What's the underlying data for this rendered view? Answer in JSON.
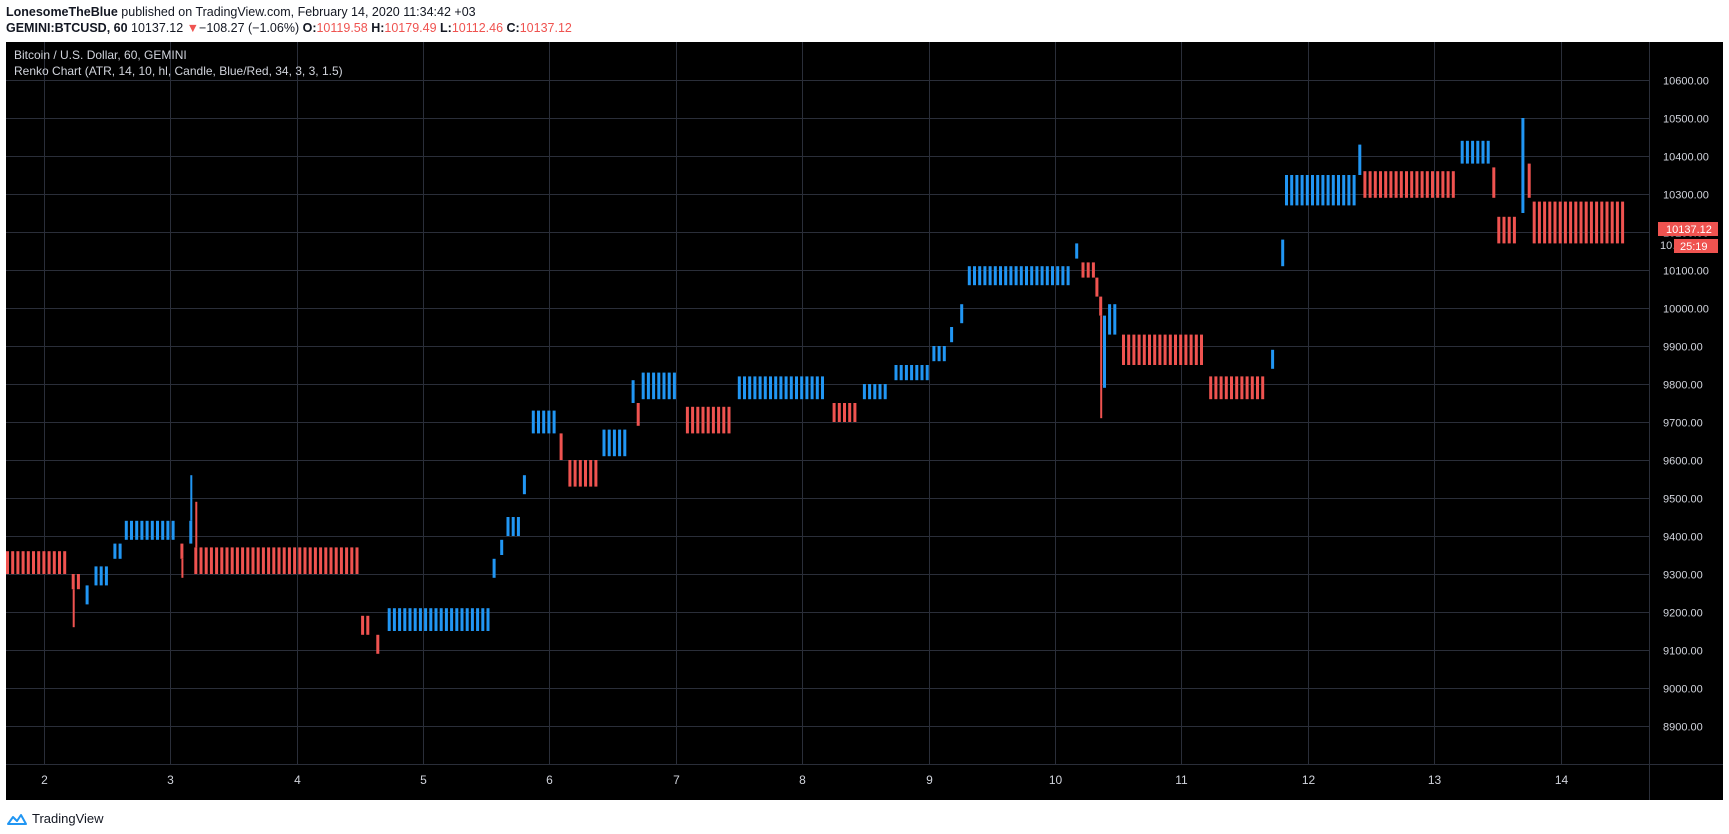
{
  "header": {
    "author": "LonesomeTheBlue",
    "published_text": " published on TradingView.com, February 14, 2020 11:34:42 +03",
    "symbol": "GEMINI:BTCUSD, 60",
    "last_price": "10137.12",
    "change_arrow": "▼",
    "change": "−108.27 (−1.06%)",
    "o_label": "O:",
    "o_value": "10119.58",
    "h_label": "H:",
    "h_value": "10179.49",
    "l_label": "L:",
    "l_value": "10112.46",
    "c_label": "C:",
    "c_value": "10137.12"
  },
  "legend": {
    "title": "Bitcoin / U.S. Dollar, 60, GEMINI",
    "indicator": "Renko Chart (ATR, 14, 10, hl, Candle, Blue/Red, 34, 3, 3, 1.5)"
  },
  "price_tags": {
    "last_price": "10137.12",
    "countdown": "25:19",
    "partial_label": "10…"
  },
  "footer": {
    "brand": "TradingView"
  },
  "colors": {
    "up": "#2196f3",
    "down": "#ef5350",
    "grid": "#2a2e39",
    "text": "#d1d4dc",
    "background": "#000000"
  },
  "chart_data": {
    "type": "renko",
    "x_axis": {
      "tick_labels": [
        "2",
        "3",
        "4",
        "5",
        "6",
        "7",
        "8",
        "9",
        "10",
        "11",
        "12",
        "13",
        "14"
      ],
      "xlim": [
        1.7,
        14.7
      ]
    },
    "y_axis": {
      "tick_labels": [
        "10600.00",
        "10500.00",
        "10400.00",
        "10300.00",
        "10200.00",
        "10100.00",
        "10000.00",
        "9900.00",
        "9800.00",
        "9700.00",
        "9600.00",
        "9500.00",
        "9400.00",
        "9300.00",
        "9200.00",
        "9100.00",
        "9000.00",
        "8900.00"
      ],
      "ylim": [
        8800,
        10700
      ],
      "position": "right"
    },
    "grid": true,
    "segments": [
      {
        "dir": "down",
        "x0": 1.7,
        "x1": 2.2,
        "low": 9300,
        "high": 9360
      },
      {
        "dir": "down",
        "x0": 2.22,
        "x1": 2.3,
        "low": 9260,
        "high": 9300,
        "wick_low": 9160
      },
      {
        "dir": "up",
        "x0": 2.33,
        "x1": 2.38,
        "low": 9220,
        "high": 9270
      },
      {
        "dir": "up",
        "x0": 2.4,
        "x1": 2.53,
        "low": 9270,
        "high": 9320
      },
      {
        "dir": "up",
        "x0": 2.55,
        "x1": 2.62,
        "low": 9340,
        "high": 9380
      },
      {
        "dir": "up",
        "x0": 2.64,
        "x1": 3.05,
        "low": 9390,
        "high": 9440
      },
      {
        "dir": "down",
        "x0": 3.08,
        "x1": 3.13,
        "low": 9340,
        "high": 9380,
        "wick_low": 9290
      },
      {
        "dir": "up",
        "x0": 3.15,
        "x1": 3.17,
        "low": 9380,
        "high": 9440,
        "wick_high": 9560
      },
      {
        "dir": "down",
        "x0": 3.19,
        "x1": 4.51,
        "low": 9300,
        "high": 9370,
        "wick_high": 9490
      },
      {
        "dir": "down",
        "x0": 4.51,
        "x1": 4.61,
        "low": 9140,
        "high": 9190
      },
      {
        "dir": "down",
        "x0": 4.63,
        "x1": 4.69,
        "low": 9090,
        "high": 9140
      },
      {
        "dir": "up",
        "x0": 4.72,
        "x1": 5.53,
        "low": 9150,
        "high": 9210
      },
      {
        "dir": "up",
        "x0": 5.55,
        "x1": 5.59,
        "low": 9290,
        "high": 9340
      },
      {
        "dir": "up",
        "x0": 5.61,
        "x1": 5.65,
        "low": 9350,
        "high": 9390
      },
      {
        "dir": "up",
        "x0": 5.66,
        "x1": 5.77,
        "low": 9400,
        "high": 9450
      },
      {
        "dir": "up",
        "x0": 5.79,
        "x1": 5.84,
        "low": 9510,
        "high": 9560
      },
      {
        "dir": "up",
        "x0": 5.86,
        "x1": 6.05,
        "low": 9670,
        "high": 9730
      },
      {
        "dir": "down",
        "x0": 6.08,
        "x1": 6.13,
        "low": 9600,
        "high": 9670
      },
      {
        "dir": "down",
        "x0": 6.15,
        "x1": 6.4,
        "low": 9530,
        "high": 9600
      },
      {
        "dir": "up",
        "x0": 6.42,
        "x1": 6.63,
        "low": 9610,
        "high": 9680
      },
      {
        "dir": "up",
        "x0": 6.65,
        "x1": 6.67,
        "low": 9750,
        "high": 9810
      },
      {
        "dir": "down",
        "x0": 6.69,
        "x1": 6.71,
        "low": 9690,
        "high": 9750
      },
      {
        "dir": "up",
        "x0": 6.73,
        "x1": 7.03,
        "low": 9760,
        "high": 9830
      },
      {
        "dir": "down",
        "x0": 7.08,
        "x1": 7.45,
        "low": 9670,
        "high": 9740
      },
      {
        "dir": "up",
        "x0": 7.49,
        "x1": 8.2,
        "low": 9760,
        "high": 9820
      },
      {
        "dir": "down",
        "x0": 8.24,
        "x1": 8.43,
        "low": 9700,
        "high": 9750
      },
      {
        "dir": "up",
        "x0": 8.48,
        "x1": 8.7,
        "low": 9760,
        "high": 9800
      },
      {
        "dir": "up",
        "x0": 8.73,
        "x1": 9.03,
        "low": 9810,
        "high": 9850
      },
      {
        "dir": "up",
        "x0": 9.03,
        "x1": 9.15,
        "low": 9860,
        "high": 9900
      },
      {
        "dir": "up",
        "x0": 9.17,
        "x1": 9.23,
        "low": 9910,
        "high": 9950
      },
      {
        "dir": "up",
        "x0": 9.25,
        "x1": 9.29,
        "low": 9960,
        "high": 10010
      },
      {
        "dir": "up",
        "x0": 9.31,
        "x1": 10.14,
        "low": 10060,
        "high": 10110
      },
      {
        "dir": "up",
        "x0": 10.16,
        "x1": 10.2,
        "low": 10130,
        "high": 10170
      },
      {
        "dir": "down",
        "x0": 10.21,
        "x1": 10.32,
        "low": 10080,
        "high": 10120
      },
      {
        "dir": "down",
        "x0": 10.32,
        "x1": 10.35,
        "low": 10030,
        "high": 10080
      },
      {
        "dir": "down",
        "x0": 10.35,
        "x1": 10.38,
        "low": 9980,
        "high": 10030,
        "wick_low": 9710
      },
      {
        "dir": "up",
        "x0": 10.38,
        "x1": 10.4,
        "low": 9790,
        "high": 9980
      },
      {
        "dir": "up",
        "x0": 10.42,
        "x1": 10.51,
        "low": 9930,
        "high": 10010
      },
      {
        "dir": "down",
        "x0": 10.53,
        "x1": 11.2,
        "low": 9850,
        "high": 9930
      },
      {
        "dir": "down",
        "x0": 11.22,
        "x1": 11.69,
        "low": 9760,
        "high": 9820
      },
      {
        "dir": "up",
        "x0": 11.71,
        "x1": 11.77,
        "low": 9840,
        "high": 9890
      },
      {
        "dir": "up",
        "x0": 11.79,
        "x1": 11.81,
        "low": 10110,
        "high": 10180
      },
      {
        "dir": "up",
        "x0": 11.82,
        "x1": 12.38,
        "low": 10270,
        "high": 10350
      },
      {
        "dir": "up",
        "x0": 12.4,
        "x1": 12.42,
        "low": 10350,
        "high": 10430
      },
      {
        "dir": "down",
        "x0": 12.44,
        "x1": 13.17,
        "low": 10290,
        "high": 10360
      },
      {
        "dir": "up",
        "x0": 13.21,
        "x1": 13.44,
        "low": 10380,
        "high": 10440
      },
      {
        "dir": "down",
        "x0": 13.46,
        "x1": 13.48,
        "low": 10290,
        "high": 10370
      },
      {
        "dir": "down",
        "x0": 13.5,
        "x1": 13.67,
        "low": 10170,
        "high": 10240
      },
      {
        "dir": "up",
        "x0": 13.69,
        "x1": 13.72,
        "low": 10250,
        "high": 10500
      },
      {
        "dir": "down",
        "x0": 13.74,
        "x1": 13.76,
        "low": 10290,
        "high": 10380
      },
      {
        "dir": "down",
        "x0": 13.78,
        "x1": 14.51,
        "low": 10170,
        "high": 10280
      }
    ]
  }
}
